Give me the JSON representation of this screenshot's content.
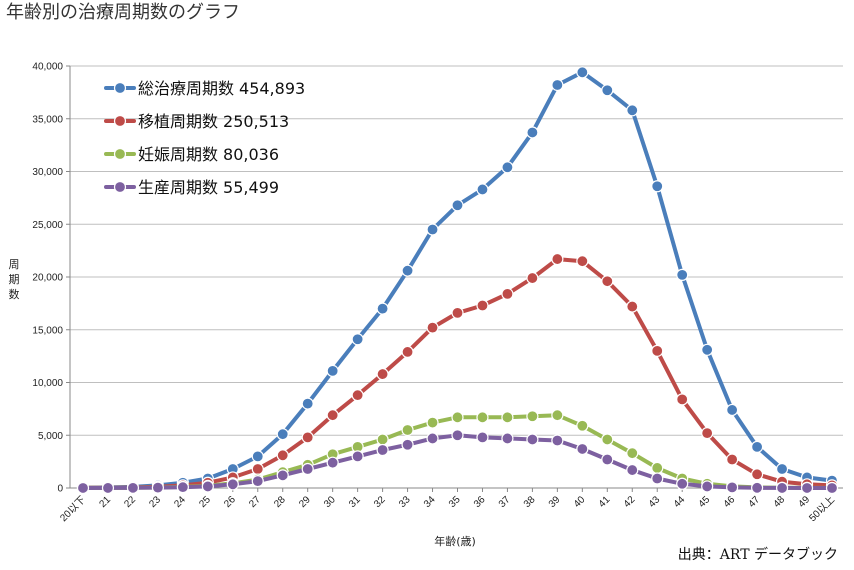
{
  "chart_data": {
    "type": "line",
    "title": "年齢別の治療周期数のグラフ",
    "xlabel": "年齢(歳)",
    "ylabel": "周期数",
    "ylim": [
      0,
      40000
    ],
    "yticks": [
      0,
      5000,
      10000,
      15000,
      20000,
      25000,
      30000,
      35000,
      40000
    ],
    "ytick_labels": [
      "0",
      "5,000",
      "10,000",
      "15,000",
      "20,000",
      "25,000",
      "30,000",
      "35,000",
      "40,000"
    ],
    "categories": [
      "20以下",
      "21",
      "22",
      "23",
      "24",
      "25",
      "26",
      "27",
      "28",
      "29",
      "30",
      "31",
      "32",
      "33",
      "34",
      "35",
      "36",
      "37",
      "38",
      "39",
      "40",
      "41",
      "42",
      "43",
      "44",
      "45",
      "46",
      "47",
      "48",
      "49",
      "50以上"
    ],
    "grid": "horizontal",
    "legend_position": "top-left",
    "series": [
      {
        "name": "総治療周期数",
        "legend_value": "454,893",
        "color": "#4a7ebb",
        "values": [
          30,
          60,
          100,
          250,
          500,
          900,
          1800,
          3000,
          5100,
          8000,
          11100,
          14100,
          17000,
          20600,
          24500,
          26800,
          28300,
          30400,
          33700,
          38200,
          39400,
          37700,
          35800,
          28600,
          20200,
          13100,
          7400,
          3900,
          1800,
          1000,
          700
        ]
      },
      {
        "name": "移植周期数",
        "legend_value": "250,513",
        "color": "#be4b48",
        "values": [
          15,
          30,
          60,
          120,
          250,
          500,
          1000,
          1800,
          3100,
          4800,
          6900,
          8800,
          10800,
          12900,
          15200,
          16600,
          17300,
          18400,
          19900,
          21700,
          21500,
          19600,
          17200,
          13000,
          8400,
          5200,
          2700,
          1300,
          600,
          350,
          250
        ]
      },
      {
        "name": "妊娠周期数",
        "legend_value": "80,036",
        "color": "#98b954",
        "values": [
          5,
          10,
          20,
          50,
          100,
          200,
          450,
          800,
          1500,
          2200,
          3200,
          3900,
          4600,
          5500,
          6200,
          6700,
          6700,
          6700,
          6800,
          6900,
          5900,
          4600,
          3300,
          1900,
          900,
          400,
          150,
          60,
          25,
          10,
          5
        ]
      },
      {
        "name": "生産周期数",
        "legend_value": "55,499",
        "color": "#7d60a0",
        "values": [
          3,
          7,
          15,
          35,
          80,
          150,
          350,
          650,
          1200,
          1800,
          2400,
          3000,
          3600,
          4100,
          4700,
          5000,
          4800,
          4700,
          4600,
          4500,
          3700,
          2700,
          1700,
          900,
          400,
          150,
          60,
          20,
          8,
          3,
          2
        ]
      }
    ]
  },
  "source_text": "出典：ART データブック"
}
